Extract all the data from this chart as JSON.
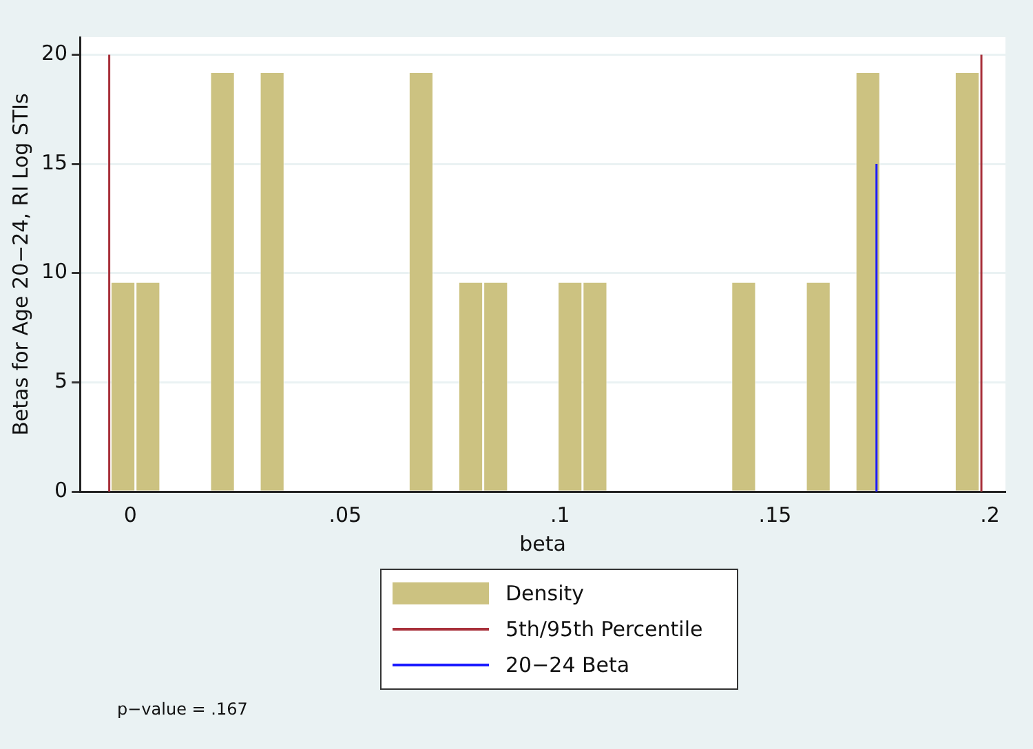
{
  "chart_data": {
    "type": "histogram",
    "xlabel": "beta",
    "ylabel": "Betas for Age 20−24, RI Log STIs",
    "bins": [
      -0.0046,
      0.0012,
      0.007,
      0.0128,
      0.0186,
      0.0243,
      0.0301,
      0.0359,
      0.0416,
      0.0474,
      0.0532,
      0.059,
      0.0648,
      0.0705,
      0.0763,
      0.0821,
      0.0879,
      0.0936,
      0.0994,
      0.1052,
      0.111,
      0.1167,
      0.1225,
      0.1283,
      0.1341,
      0.1398,
      0.1456,
      0.1514,
      0.1572,
      0.1629,
      0.1687,
      0.1745,
      0.1803,
      0.186,
      0.1918,
      0.1976
    ],
    "series": [
      {
        "name": "Density",
        "color": "#ccc281",
        "values": [
          9.6,
          9.6,
          0,
          0,
          19.2,
          0,
          19.2,
          0,
          0,
          0,
          0,
          0,
          19.2,
          0,
          9.6,
          9.6,
          0,
          0,
          9.6,
          9.6,
          0,
          0,
          0,
          0,
          0,
          9.6,
          0,
          0,
          9.6,
          0,
          19.2,
          0,
          0,
          0,
          19.2
        ]
      },
      {
        "name": "5th/95th Percentile",
        "type": "line",
        "color": "#a8303a",
        "x": [
          -0.0049,
          -0.0049,
          null,
          0.198,
          0.198
        ],
        "values": [
          0,
          20,
          null,
          0,
          20
        ]
      },
      {
        "name": "20−24 Beta",
        "type": "line",
        "color": "#1a1aff",
        "x": [
          0.1736,
          0.1736
        ],
        "values": [
          0,
          15
        ]
      }
    ],
    "xlim": [
      -0.0117,
      0.2036
    ],
    "xticks": [
      0,
      {
        "value": 0.05,
        "label": ".05"
      },
      {
        "value": 0.1,
        "label": ".1"
      },
      {
        "value": 0.15,
        "label": ".15"
      },
      {
        "value": 0.2,
        "label": ".2"
      }
    ],
    "ylim": [
      0,
      20.8
    ],
    "yticks": [
      0,
      5,
      10,
      15,
      20
    ],
    "grid": "y",
    "legend": "bottom",
    "marker": "none",
    "annotations": [
      "p−value = .167"
    ]
  }
}
